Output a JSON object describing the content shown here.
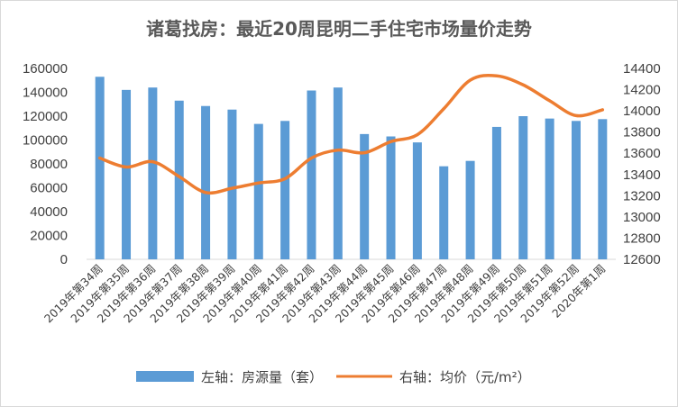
{
  "chart_data": {
    "type": "bar+line",
    "title": "诸葛找房：最近20周昆明二手住宅市场量价走势",
    "categories": [
      "2019年第34周",
      "2019年第35周",
      "2019年第36周",
      "2019年第37周",
      "2019年第38周",
      "2019年第39周",
      "2019年第40周",
      "2019年第41周",
      "2019年第42周",
      "2019年第43周",
      "2019年第44周",
      "2019年第45周",
      "2019年第46周",
      "2019年第47周",
      "2019年第48周",
      "2019年第49周",
      "2019年第50周",
      "2019年第51周",
      "2019年第52周",
      "2020年第1周"
    ],
    "series": [
      {
        "name": "左轴：房源量（套）",
        "type": "bar",
        "axis": "left",
        "color": "#5b9bd5",
        "values": [
          153000,
          142000,
          144000,
          133000,
          128500,
          125500,
          113500,
          116000,
          141500,
          144000,
          105000,
          103000,
          98000,
          78000,
          82500,
          111000,
          120000,
          118000,
          116000,
          117500
        ]
      },
      {
        "name": "右轴：均价（元/m²）",
        "type": "line",
        "axis": "right",
        "color": "#ed7d31",
        "values": [
          13555,
          13470,
          13520,
          13380,
          13230,
          13270,
          13320,
          13360,
          13555,
          13630,
          13605,
          13710,
          13775,
          14020,
          14290,
          14330,
          14245,
          14095,
          13955,
          14010
        ]
      }
    ],
    "y_left": {
      "min": 0,
      "max": 160000,
      "step": 20000,
      "ticks": [
        "0",
        "20000",
        "40000",
        "60000",
        "80000",
        "100000",
        "120000",
        "140000",
        "160000"
      ]
    },
    "y_right": {
      "min": 12600,
      "max": 14400,
      "step": 200,
      "ticks": [
        "12600",
        "12800",
        "13000",
        "13200",
        "13400",
        "13600",
        "13800",
        "14000",
        "14200",
        "14400"
      ]
    },
    "grid": false,
    "legend": {
      "position": "bottom",
      "bar_label": "左轴：房源量（套）",
      "line_label": "右轴：均价（元/m²）"
    }
  }
}
